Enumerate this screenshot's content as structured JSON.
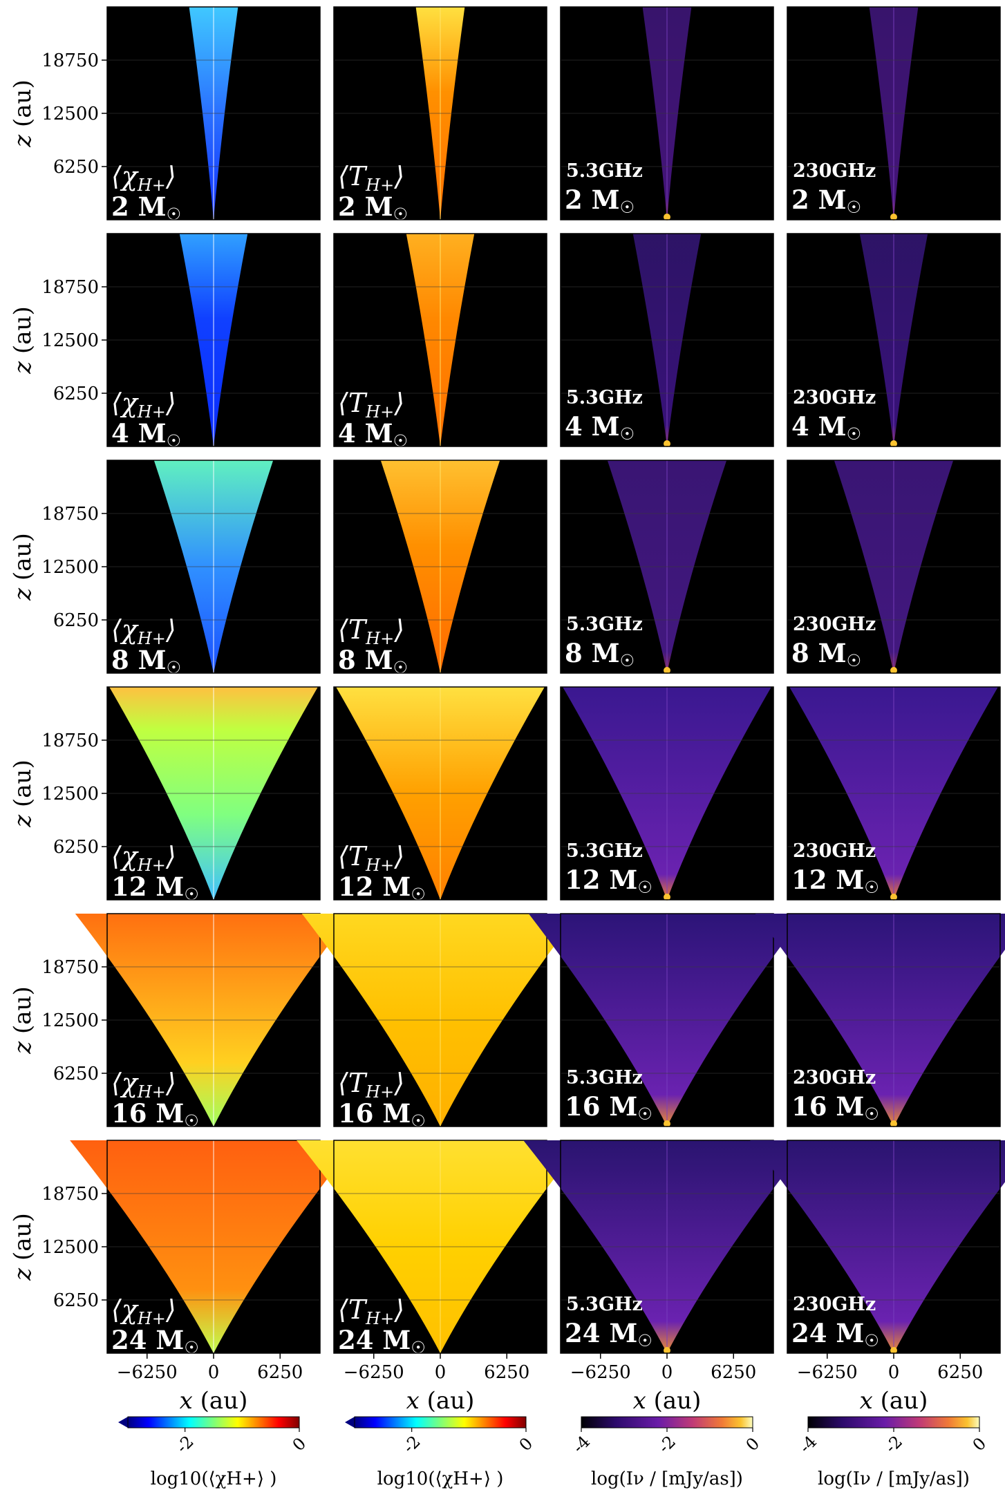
{
  "chart_data": {
    "type": "heatmap",
    "layout": {
      "rows": 6,
      "cols": 4
    },
    "masses": [
      "2",
      "4",
      "8",
      "12",
      "16",
      "24"
    ],
    "mass_unit": "M",
    "sun_symbol": "☉",
    "columns": [
      {
        "key": "chi",
        "qty_base": "⟨χ",
        "qty_sub": "H+",
        "qty_close": "⟩",
        "colormap": "jet",
        "cbar_ticks": [
          "-2",
          "0"
        ],
        "cbar_label": "log10(⟨χH+⟩ )",
        "range": [
          -3,
          0
        ]
      },
      {
        "key": "temp",
        "qty_base": "⟨T",
        "qty_sub": "H+",
        "qty_close": "⟩",
        "colormap": "jet",
        "cbar_ticks": [
          "-2",
          "0"
        ],
        "cbar_label": "log10(⟨χH+⟩ )",
        "range": [
          -3,
          0
        ]
      },
      {
        "key": "i53",
        "freq": "5.3GHz",
        "colormap": "plasma-dark",
        "cbar_ticks": [
          "-4",
          "-2",
          "0"
        ],
        "cbar_label": "log(Iν / [mJy/as])",
        "range": [
          -4,
          0
        ]
      },
      {
        "key": "i230",
        "freq": "230GHz",
        "colormap": "plasma-dark",
        "cbar_ticks": [
          "-4",
          "-2",
          "0"
        ],
        "cbar_label": "log(Iν / [mJy/as])",
        "range": [
          -4,
          0
        ]
      }
    ],
    "x_axis": {
      "label": "x (au)",
      "ticks": [
        -6250,
        0,
        6250
      ],
      "tick_labels": [
        "−6250",
        "0",
        "6250"
      ],
      "range": [
        -10000,
        10000
      ]
    },
    "y_axis": {
      "label": "z (au)",
      "ticks": [
        6250,
        12500,
        18750
      ],
      "tick_labels": [
        "6250",
        "12500",
        "18750"
      ],
      "range": [
        0,
        25000
      ]
    },
    "outflow_half_width_at_top_au": [
      2300,
      3200,
      5600,
      9800,
      13000,
      13500
    ],
    "grid": true,
    "colors": {
      "background": "#000000",
      "frame": "#000000",
      "text_on_panel": "#ffffff"
    }
  }
}
